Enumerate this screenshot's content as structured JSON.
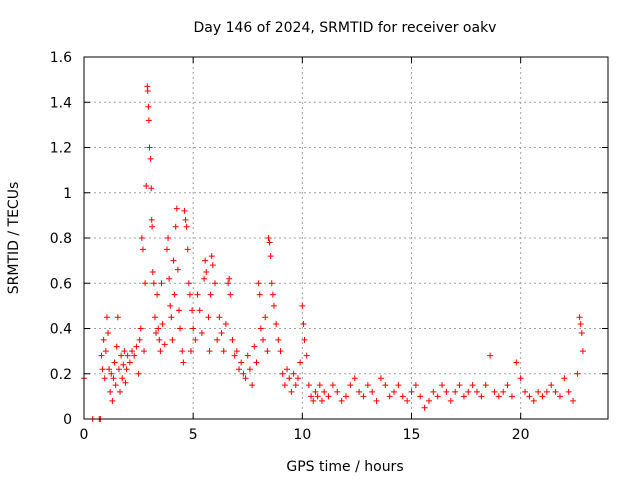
{
  "chart_data": {
    "type": "scatter",
    "title": "Day 146 of 2024, SRMTID for receiver oakv",
    "xlabel": "GPS time / hours",
    "ylabel": "SRMTID / TECUs",
    "xlim": [
      0,
      24
    ],
    "ylim": [
      0,
      1.6
    ],
    "xticks": [
      0,
      5,
      10,
      15,
      20
    ],
    "yticks": [
      0,
      0.2,
      0.4,
      0.6,
      0.8,
      1.0,
      1.2,
      1.4,
      1.6
    ],
    "xtick_labels": [
      "0",
      "5",
      "10",
      "15",
      "20"
    ],
    "ytick_labels": [
      "0",
      "0.2",
      "0.4",
      "0.6",
      "0.8",
      "1",
      "1.2",
      "1.4",
      "1.6"
    ],
    "grid": true,
    "marker": "plus",
    "marker_color": "#ff0000",
    "series": [
      {
        "name": "SRMTID",
        "points": [
          [
            0.0,
            0.18
          ],
          [
            0.4,
            0.0
          ],
          [
            0.7,
            0.0
          ],
          [
            0.75,
            0.0
          ],
          [
            0.8,
            0.28
          ],
          [
            0.85,
            0.22
          ],
          [
            0.9,
            0.35
          ],
          [
            0.95,
            0.18
          ],
          [
            1.0,
            0.3
          ],
          [
            1.05,
            0.45
          ],
          [
            1.1,
            0.38
          ],
          [
            1.15,
            0.22
          ],
          [
            1.2,
            0.12
          ],
          [
            1.25,
            0.2
          ],
          [
            1.3,
            0.08
          ],
          [
            1.35,
            0.18
          ],
          [
            1.4,
            0.25
          ],
          [
            1.45,
            0.15
          ],
          [
            1.5,
            0.32
          ],
          [
            1.55,
            0.45
          ],
          [
            1.6,
            0.22
          ],
          [
            1.65,
            0.12
          ],
          [
            1.7,
            0.28
          ],
          [
            1.75,
            0.18
          ],
          [
            1.8,
            0.24
          ],
          [
            1.85,
            0.3
          ],
          [
            1.9,
            0.16
          ],
          [
            1.95,
            0.22
          ],
          [
            2.0,
            0.28
          ],
          [
            2.1,
            0.25
          ],
          [
            2.2,
            0.3
          ],
          [
            2.3,
            0.28
          ],
          [
            2.4,
            0.32
          ],
          [
            2.5,
            0.2
          ],
          [
            2.55,
            0.35
          ],
          [
            2.6,
            0.4
          ],
          [
            2.65,
            0.8
          ],
          [
            2.7,
            0.75
          ],
          [
            2.75,
            0.3
          ],
          [
            2.8,
            0.6
          ],
          [
            2.85,
            1.03
          ],
          [
            2.9,
            1.47
          ],
          [
            2.92,
            1.45
          ],
          [
            2.95,
            1.38
          ],
          [
            2.97,
            1.32
          ],
          [
            3.0,
            1.2
          ],
          [
            3.05,
            1.15
          ],
          [
            3.08,
            1.02
          ],
          [
            3.1,
            0.88
          ],
          [
            3.12,
            0.85
          ],
          [
            3.15,
            0.65
          ],
          [
            3.2,
            0.6
          ],
          [
            3.25,
            0.45
          ],
          [
            3.3,
            0.38
          ],
          [
            3.35,
            0.55
          ],
          [
            3.4,
            0.4
          ],
          [
            3.45,
            0.35
          ],
          [
            3.5,
            0.3
          ],
          [
            3.55,
            0.6
          ],
          [
            3.6,
            0.42
          ],
          [
            3.7,
            0.33
          ],
          [
            3.8,
            0.75
          ],
          [
            3.85,
            0.8
          ],
          [
            3.9,
            0.62
          ],
          [
            3.95,
            0.5
          ],
          [
            4.0,
            0.45
          ],
          [
            4.05,
            0.35
          ],
          [
            4.1,
            0.7
          ],
          [
            4.15,
            0.55
          ],
          [
            4.2,
            0.85
          ],
          [
            4.25,
            0.93
          ],
          [
            4.3,
            0.66
          ],
          [
            4.35,
            0.48
          ],
          [
            4.4,
            0.4
          ],
          [
            4.5,
            0.3
          ],
          [
            4.55,
            0.25
          ],
          [
            4.6,
            0.92
          ],
          [
            4.65,
            0.88
          ],
          [
            4.7,
            0.85
          ],
          [
            4.75,
            0.75
          ],
          [
            4.8,
            0.6
          ],
          [
            4.85,
            0.55
          ],
          [
            4.9,
            0.3
          ],
          [
            4.95,
            0.48
          ],
          [
            5.0,
            0.4
          ],
          [
            5.1,
            0.35
          ],
          [
            5.2,
            0.55
          ],
          [
            5.3,
            0.48
          ],
          [
            5.4,
            0.38
          ],
          [
            5.5,
            0.62
          ],
          [
            5.55,
            0.7
          ],
          [
            5.6,
            0.65
          ],
          [
            5.7,
            0.45
          ],
          [
            5.75,
            0.3
          ],
          [
            5.8,
            0.55
          ],
          [
            5.85,
            0.72
          ],
          [
            5.9,
            0.68
          ],
          [
            6.0,
            0.6
          ],
          [
            6.1,
            0.35
          ],
          [
            6.2,
            0.45
          ],
          [
            6.3,
            0.38
          ],
          [
            6.4,
            0.3
          ],
          [
            6.5,
            0.42
          ],
          [
            6.6,
            0.6
          ],
          [
            6.65,
            0.62
          ],
          [
            6.7,
            0.55
          ],
          [
            6.8,
            0.35
          ],
          [
            6.9,
            0.28
          ],
          [
            7.0,
            0.3
          ],
          [
            7.1,
            0.22
          ],
          [
            7.2,
            0.25
          ],
          [
            7.3,
            0.2
          ],
          [
            7.4,
            0.18
          ],
          [
            7.5,
            0.28
          ],
          [
            7.6,
            0.22
          ],
          [
            7.7,
            0.15
          ],
          [
            7.8,
            0.32
          ],
          [
            7.9,
            0.25
          ],
          [
            8.0,
            0.6
          ],
          [
            8.05,
            0.55
          ],
          [
            8.1,
            0.4
          ],
          [
            8.2,
            0.35
          ],
          [
            8.3,
            0.45
          ],
          [
            8.4,
            0.3
          ],
          [
            8.45,
            0.8
          ],
          [
            8.5,
            0.78
          ],
          [
            8.55,
            0.72
          ],
          [
            8.6,
            0.6
          ],
          [
            8.65,
            0.55
          ],
          [
            8.7,
            0.5
          ],
          [
            8.8,
            0.42
          ],
          [
            8.9,
            0.35
          ],
          [
            9.0,
            0.3
          ],
          [
            9.1,
            0.2
          ],
          [
            9.2,
            0.15
          ],
          [
            9.3,
            0.22
          ],
          [
            9.4,
            0.18
          ],
          [
            9.5,
            0.12
          ],
          [
            9.6,
            0.2
          ],
          [
            9.7,
            0.15
          ],
          [
            9.8,
            0.18
          ],
          [
            9.9,
            0.25
          ],
          [
            10.0,
            0.5
          ],
          [
            10.05,
            0.42
          ],
          [
            10.1,
            0.35
          ],
          [
            10.2,
            0.28
          ],
          [
            10.3,
            0.15
          ],
          [
            10.4,
            0.1
          ],
          [
            10.5,
            0.08
          ],
          [
            10.6,
            0.12
          ],
          [
            10.7,
            0.1
          ],
          [
            10.8,
            0.15
          ],
          [
            10.9,
            0.08
          ],
          [
            11.0,
            0.12
          ],
          [
            11.2,
            0.1
          ],
          [
            11.4,
            0.15
          ],
          [
            11.6,
            0.12
          ],
          [
            11.8,
            0.08
          ],
          [
            12.0,
            0.1
          ],
          [
            12.2,
            0.15
          ],
          [
            12.4,
            0.18
          ],
          [
            12.6,
            0.12
          ],
          [
            12.8,
            0.1
          ],
          [
            13.0,
            0.15
          ],
          [
            13.2,
            0.12
          ],
          [
            13.4,
            0.08
          ],
          [
            13.6,
            0.18
          ],
          [
            13.8,
            0.15
          ],
          [
            14.0,
            0.1
          ],
          [
            14.2,
            0.12
          ],
          [
            14.4,
            0.15
          ],
          [
            14.6,
            0.1
          ],
          [
            14.8,
            0.08
          ],
          [
            15.0,
            0.12
          ],
          [
            15.2,
            0.15
          ],
          [
            15.4,
            0.1
          ],
          [
            15.6,
            0.05
          ],
          [
            15.8,
            0.08
          ],
          [
            16.0,
            0.12
          ],
          [
            16.2,
            0.1
          ],
          [
            16.4,
            0.15
          ],
          [
            16.6,
            0.12
          ],
          [
            16.8,
            0.08
          ],
          [
            17.0,
            0.12
          ],
          [
            17.2,
            0.15
          ],
          [
            17.4,
            0.1
          ],
          [
            17.6,
            0.12
          ],
          [
            17.8,
            0.15
          ],
          [
            18.0,
            0.12
          ],
          [
            18.2,
            0.1
          ],
          [
            18.4,
            0.15
          ],
          [
            18.6,
            0.28
          ],
          [
            18.8,
            0.12
          ],
          [
            19.0,
            0.1
          ],
          [
            19.2,
            0.12
          ],
          [
            19.4,
            0.15
          ],
          [
            19.6,
            0.1
          ],
          [
            19.8,
            0.25
          ],
          [
            20.0,
            0.18
          ],
          [
            20.2,
            0.12
          ],
          [
            20.4,
            0.1
          ],
          [
            20.6,
            0.08
          ],
          [
            20.8,
            0.12
          ],
          [
            21.0,
            0.1
          ],
          [
            21.2,
            0.12
          ],
          [
            21.4,
            0.15
          ],
          [
            21.6,
            0.12
          ],
          [
            21.8,
            0.1
          ],
          [
            22.0,
            0.18
          ],
          [
            22.2,
            0.12
          ],
          [
            22.4,
            0.08
          ],
          [
            22.6,
            0.2
          ],
          [
            22.7,
            0.45
          ],
          [
            22.75,
            0.42
          ],
          [
            22.8,
            0.38
          ],
          [
            22.85,
            0.3
          ]
        ]
      }
    ]
  }
}
